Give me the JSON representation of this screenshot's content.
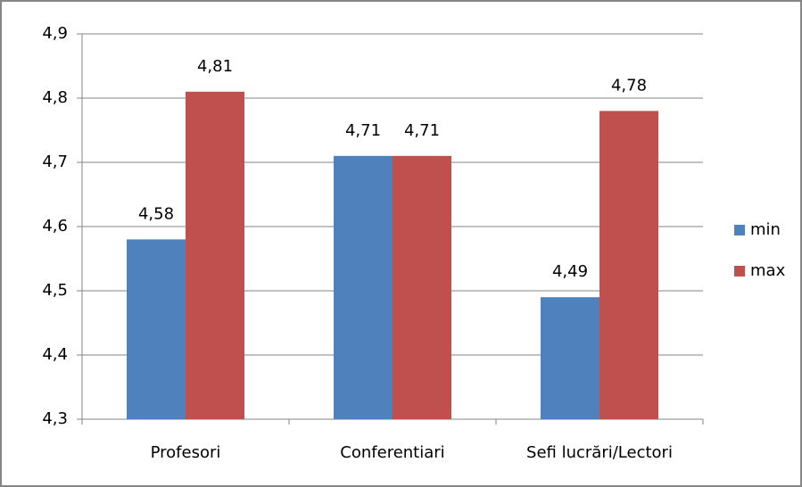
{
  "chart_data": {
    "type": "bar",
    "categories": [
      "Profesori",
      "Conferentiari",
      "Sefi lucrări/Lectori"
    ],
    "series": [
      {
        "name": "min",
        "color": "#4f81bd",
        "values": [
          4.58,
          4.71,
          4.49
        ],
        "value_labels": [
          "4,58",
          "4,71",
          "4,49"
        ]
      },
      {
        "name": "max",
        "color": "#c0504d",
        "values": [
          4.81,
          4.71,
          4.78
        ],
        "value_labels": [
          "4,81",
          "4,71",
          "4,78"
        ]
      }
    ],
    "ylim": [
      4.3,
      4.9
    ],
    "yticks": [
      {
        "value": 4.3,
        "label": "4,3"
      },
      {
        "value": 4.4,
        "label": "4,4"
      },
      {
        "value": 4.5,
        "label": "4,5"
      },
      {
        "value": 4.6,
        "label": "4,6"
      },
      {
        "value": 4.7,
        "label": "4,7"
      },
      {
        "value": 4.8,
        "label": "4,8"
      },
      {
        "value": 4.9,
        "label": "4,9"
      }
    ],
    "grid": true,
    "legend": "right"
  }
}
